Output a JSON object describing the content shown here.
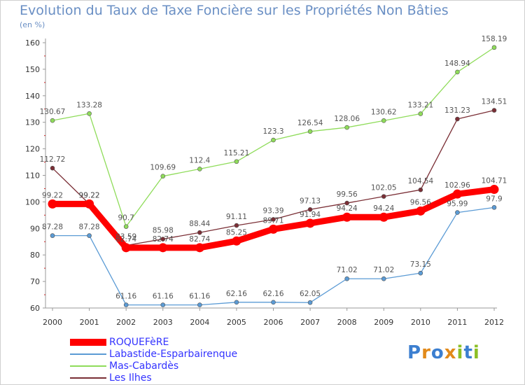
{
  "title": "Evolution du Taux de Taxe Foncière sur les Propriétés Non Bâties",
  "unit": "(en %)",
  "brand": {
    "text": "Proxiti",
    "letters": [
      "P",
      "r",
      "o",
      "x",
      "i",
      "t",
      "i"
    ],
    "colors": [
      "#3c7fd0",
      "#e28a1a",
      "#3c7fd0",
      "#e28a1a",
      "#8cbf26",
      "#3c7fd0",
      "#8cbf26"
    ]
  },
  "chart_data": {
    "type": "line",
    "title": "Evolution du Taux de Taxe Foncière sur les Propriétés Non Bâties",
    "ylabel": "(en %)",
    "xlabel": "",
    "categories": [
      "2000",
      "2001",
      "2002",
      "2003",
      "2004",
      "2005",
      "2006",
      "2007",
      "2008",
      "2009",
      "2010",
      "2011",
      "2012"
    ],
    "ylim": [
      60,
      160
    ],
    "yticks": [
      60,
      70,
      80,
      90,
      100,
      110,
      120,
      130,
      140,
      150,
      160
    ],
    "grid": false,
    "legend_position": "bottom-left",
    "series": [
      {
        "name": "ROQUEFèRE",
        "color": "#ff0000",
        "label_color": "#555555",
        "emphasis": "thick",
        "values": [
          99.22,
          99.22,
          82.74,
          82.74,
          82.74,
          85.25,
          89.71,
          91.94,
          94.24,
          94.24,
          96.56,
          102.96,
          104.71
        ],
        "labels": [
          "99.22",
          "99.22",
          "82.74",
          "82.74",
          "82.74",
          "85.25",
          "89.71",
          "91.94",
          "94.24",
          "94.24",
          "96.56",
          "102.96",
          "104.71"
        ]
      },
      {
        "name": "Labastide-Esparbairenque",
        "color": "#5b9bd5",
        "label_color": "#555555",
        "emphasis": "thin",
        "values": [
          87.28,
          87.28,
          61.16,
          61.16,
          61.16,
          62.16,
          62.16,
          62.05,
          71.02,
          71.02,
          73.15,
          95.99,
          97.9
        ],
        "labels": [
          "87.28",
          "87.28",
          "61.16",
          "61.16",
          "61.16",
          "62.16",
          "62.16",
          "62.05",
          "71.02",
          "71.02",
          "73.15",
          "95.99",
          "97.9"
        ]
      },
      {
        "name": "Mas-Cabardès",
        "color": "#8fdc5a",
        "label_color": "#555555",
        "emphasis": "thin",
        "values": [
          130.67,
          133.28,
          90.7,
          109.69,
          112.4,
          115.21,
          123.3,
          126.54,
          128.06,
          130.62,
          133.21,
          148.94,
          158.19
        ],
        "labels": [
          "130.67",
          "133.28",
          "90.7",
          "109.69",
          "112.4",
          "115.21",
          "123.3",
          "126.54",
          "128.06",
          "130.62",
          "133.21",
          "148.94",
          "158.19"
        ]
      },
      {
        "name": "Les Ilhes",
        "color": "#7a2e35",
        "label_color": "#555555",
        "emphasis": "thin",
        "values": [
          112.72,
          99.22,
          83.59,
          85.98,
          88.44,
          91.11,
          93.39,
          97.13,
          99.56,
          102.05,
          104.54,
          131.23,
          134.51
        ],
        "labels": [
          "112.72",
          "99.22",
          "83.59",
          "85.98",
          "88.44",
          "91.11",
          "93.39",
          "97.13",
          "99.56",
          "102.05",
          "104.54",
          "131.23",
          "134.51"
        ]
      }
    ]
  }
}
